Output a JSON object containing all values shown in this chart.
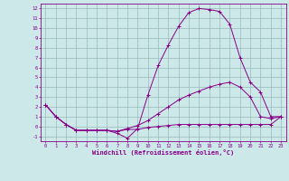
{
  "xlabel": "Windchill (Refroidissement éolien,°C)",
  "bg_color": "#cce8e8",
  "line_color": "#880088",
  "grid_color": "#99bbbb",
  "xlim": [
    -0.5,
    23.5
  ],
  "ylim": [
    -1.5,
    12.5
  ],
  "xticks": [
    0,
    1,
    2,
    3,
    4,
    5,
    6,
    7,
    8,
    9,
    10,
    11,
    12,
    13,
    14,
    15,
    16,
    17,
    18,
    19,
    20,
    21,
    22,
    23
  ],
  "yticks": [
    -1,
    0,
    1,
    2,
    3,
    4,
    5,
    6,
    7,
    8,
    9,
    10,
    11,
    12
  ],
  "line1_x": [
    0,
    1,
    2,
    3,
    4,
    5,
    6,
    7,
    8,
    9,
    10,
    11,
    12,
    13,
    14,
    15,
    16,
    17,
    18,
    19,
    20,
    21,
    22,
    23
  ],
  "line1_y": [
    2.2,
    1.0,
    0.2,
    -0.4,
    -0.4,
    -0.4,
    -0.4,
    -0.5,
    -0.3,
    -0.3,
    -0.1,
    0.0,
    0.1,
    0.2,
    0.2,
    0.2,
    0.2,
    0.2,
    0.2,
    0.2,
    0.2,
    0.2,
    0.2,
    1.0
  ],
  "line2_x": [
    0,
    1,
    2,
    3,
    4,
    5,
    6,
    7,
    8,
    9,
    10,
    11,
    12,
    13,
    14,
    15,
    16,
    17,
    18,
    19,
    20,
    21,
    22,
    23
  ],
  "line2_y": [
    2.2,
    1.0,
    0.2,
    -0.4,
    -0.4,
    -0.4,
    -0.4,
    -0.7,
    -1.2,
    -0.2,
    3.2,
    6.2,
    8.3,
    10.2,
    11.6,
    12.0,
    11.9,
    11.7,
    10.4,
    7.0,
    4.5,
    3.5,
    1.0,
    1.0
  ],
  "line3_x": [
    0,
    1,
    2,
    3,
    4,
    5,
    6,
    7,
    8,
    9,
    10,
    11,
    12,
    13,
    14,
    15,
    16,
    17,
    18,
    19,
    20,
    21,
    22,
    23
  ],
  "line3_y": [
    2.2,
    1.0,
    0.2,
    -0.4,
    -0.4,
    -0.4,
    -0.4,
    -0.5,
    -0.2,
    0.1,
    0.6,
    1.3,
    2.0,
    2.7,
    3.2,
    3.6,
    4.0,
    4.3,
    4.5,
    4.0,
    3.0,
    1.0,
    0.8,
    1.0
  ]
}
